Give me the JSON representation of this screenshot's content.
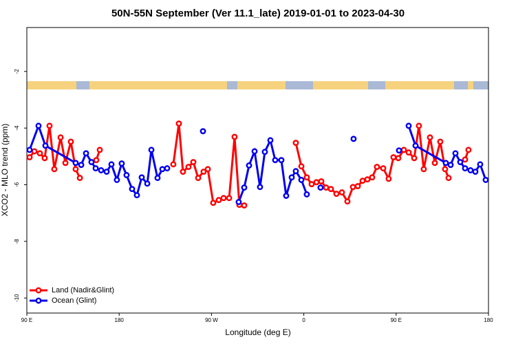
{
  "chart_data": {
    "type": "line",
    "title": "50N-55N September (Ver 11.1_late)   2019-01-01 to 2023-04-30",
    "x_label": "Longitude (deg E)",
    "y_label": "XCO2 - MLO trend (ppm)",
    "xlim": [
      90,
      540
    ],
    "xticks": [
      {
        "value": 90,
        "label": "90 E"
      },
      {
        "value": 180,
        "label": "180"
      },
      {
        "value": 270,
        "label": "90 W"
      },
      {
        "value": 360,
        "label": "0"
      },
      {
        "value": 450,
        "label": "90 E"
      },
      {
        "value": 540,
        "label": "180"
      }
    ],
    "ylim": [
      -10.53,
      -0.45
    ],
    "yticks": [
      -10,
      -8,
      -6,
      -4,
      -2
    ],
    "legend": "lower left",
    "series": [
      {
        "name": "Land (Nadir&Glint)",
        "color": "#ff0000",
        "x": [
          92.7,
          97.4,
          102.7,
          107.4,
          112.1,
          116.8,
          122.9,
          127.6,
          132.9,
          137.6,
          141.7,
          null,
          157.7,
          161.1,
          null,
          232.8,
          238.2,
          242.2,
          247.6,
          252.3,
          257.0,
          262.3,
          266.4,
          271.7,
          277.1,
          281.8,
          287.2,
          292.5,
          297.2,
          301.9,
          null,
          352.2,
          357.6,
          362.9,
          367.6,
          372.3,
          377.0,
          381.7,
          386.4,
          391.8,
          397.1,
          402.5,
          407.9,
          412.6,
          417.3,
          422.0,
          426.6,
          431.3,
          437.4,
          442.7,
          447.4,
          452.1,
          457.5,
          462.2,
          467.6,
          472.2,
          476.9,
          483.0,
          487.7,
          493.0,
          497.7,
          501.1,
          null,
          517.2,
          520.5
        ],
        "values": [
          -5.03,
          -4.82,
          -4.89,
          -5.06,
          -3.92,
          -5.45,
          -4.33,
          -5.23,
          -4.48,
          -5.45,
          -5.76,
          null,
          -5.13,
          -4.77,
          null,
          -5.28,
          -3.84,
          -5.54,
          -5.37,
          -5.2,
          -5.76,
          -5.54,
          -5.45,
          -6.64,
          -6.54,
          -6.47,
          -6.47,
          -4.31,
          -6.71,
          -6.73,
          null,
          -4.52,
          -5.35,
          -5.74,
          -5.98,
          -5.91,
          -5.88,
          -6.1,
          -6.15,
          -6.32,
          -6.27,
          -6.59,
          -6.08,
          -6.05,
          -5.86,
          -5.81,
          -5.74,
          -5.37,
          -5.42,
          -5.79,
          -5.03,
          -5.06,
          -4.77,
          -4.86,
          -5.06,
          -3.92,
          -5.45,
          -4.33,
          -5.23,
          -4.48,
          -5.45,
          -5.76,
          null,
          -5.11,
          -4.77
        ]
      },
      {
        "name": "Ocean (Glint)",
        "color": "#0000ee",
        "x": [
          92.7,
          101.4,
          108.1,
          137.6,
          143.0,
          147.7,
          153.0,
          157.1,
          162.4,
          167.8,
          172.5,
          177.8,
          182.5,
          187.2,
          192.6,
          197.3,
          202.0,
          207.4,
          211.4,
          217.4,
          222.1,
          226.8,
          null,
          261.7,
          null,
          296.5,
          301.9,
          306.6,
          312.0,
          317.3,
          322.0,
          327.4,
          332.1,
          338.1,
          342.8,
          348.2,
          352.2,
          357.6,
          362.9,
          null,
          376.3,
          null,
          408.5,
          null,
          452.8,
          null,
          462.2,
          468.9,
          498.4,
          503.1,
          507.8,
          512.5,
          517.2,
          522.5,
          527.2,
          531.9,
          537.3
        ],
        "values": [
          -4.77,
          -3.92,
          -4.62,
          -5.23,
          -5.3,
          -4.89,
          -5.2,
          -5.42,
          -5.49,
          -5.54,
          -5.28,
          -5.83,
          -5.25,
          -5.66,
          -6.15,
          -6.37,
          -5.74,
          -5.96,
          -4.77,
          -5.76,
          -5.45,
          -5.42,
          null,
          -4.11,
          null,
          -6.61,
          -6.1,
          -5.32,
          -4.82,
          -6.08,
          -4.84,
          -4.43,
          -5.13,
          -5.13,
          -6.39,
          -5.74,
          -5.52,
          -5.83,
          -6.34,
          null,
          -6.1,
          null,
          -4.38,
          null,
          -4.79,
          null,
          -3.92,
          -4.62,
          -5.23,
          -5.3,
          -4.89,
          -5.2,
          -5.42,
          -5.49,
          -5.54,
          -5.28,
          -5.83
        ]
      }
    ]
  }
}
